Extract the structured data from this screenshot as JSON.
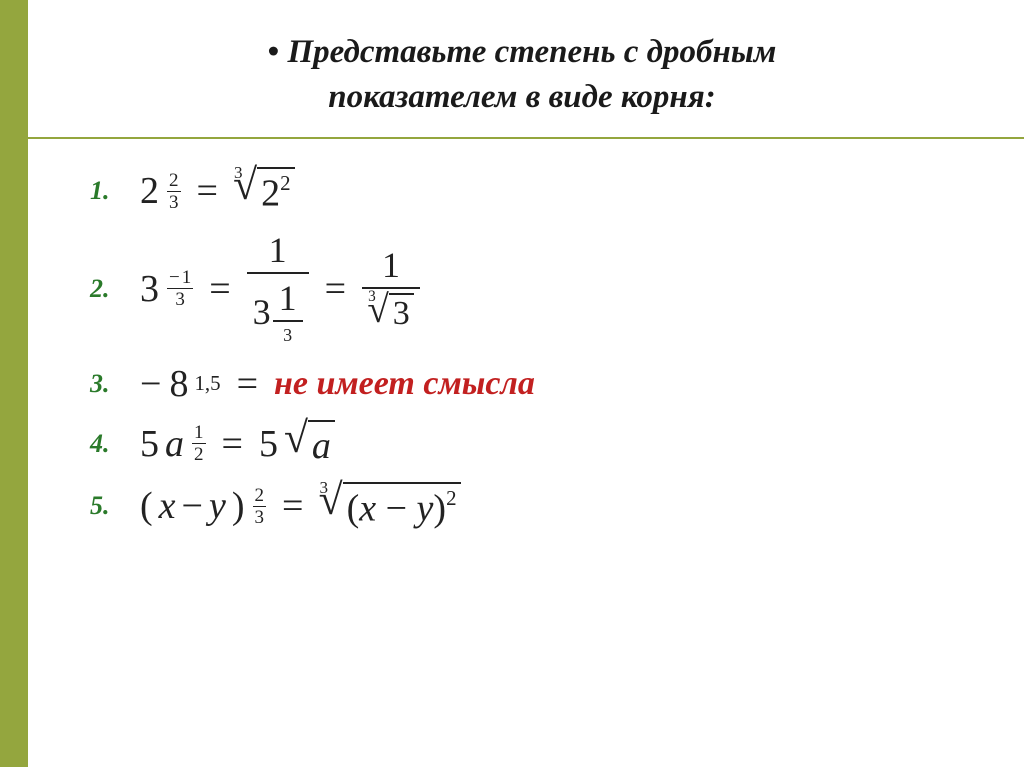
{
  "title_line1": "Представьте степень с дробным",
  "title_line2": "показателем в виде корня:",
  "bullet": "•",
  "items": {
    "n1": "1.",
    "n2": "2.",
    "n3": "3.",
    "n4": "4.",
    "n5": "5."
  },
  "eq": "=",
  "r1": {
    "base": "2",
    "exp_top": "2",
    "exp_bot": "3",
    "root_idx": "3",
    "root_rad_base": "2",
    "root_rad_exp": "2"
  },
  "r2": {
    "base": "3",
    "exp_neg": "−",
    "exp_top": "1",
    "exp_bot": "3",
    "frac_top": "1",
    "inner_base": "3",
    "inner_exp_top": "1",
    "inner_exp_bot": "3",
    "root_idx": "3",
    "root_rad": "3",
    "frac2_top": "1"
  },
  "r3": {
    "neg": "−",
    "base": "8",
    "exp": "1,5",
    "text": "не имеет смысла"
  },
  "r4": {
    "coef": "5",
    "var": "a",
    "exp_top": "1",
    "exp_bot": "2",
    "res_coef": "5",
    "root_rad": "a"
  },
  "r5": {
    "lpar": "(",
    "rpar": ")",
    "x": "x",
    "minus": "−",
    "y": "y",
    "exp_top": "2",
    "exp_bot": "3",
    "root_idx": "3",
    "root_exp": "2"
  },
  "colors": {
    "accent": "#94a63e",
    "list_num": "#2a7a2a",
    "warn": "#c22020",
    "text": "#222222",
    "bg": "#ffffff"
  },
  "font": {
    "title_size_pt": 25,
    "math_size_pt": 29,
    "num_size_pt": 20
  }
}
